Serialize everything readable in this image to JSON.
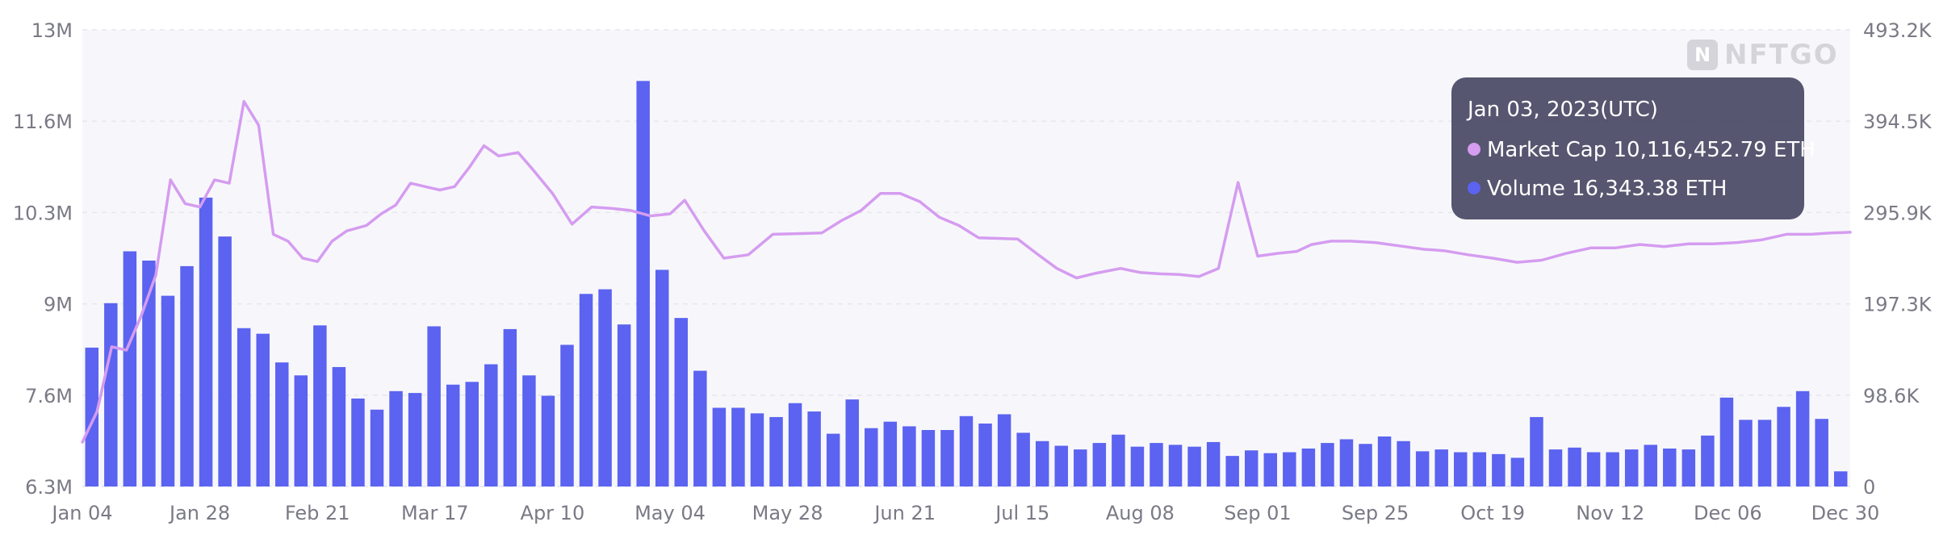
{
  "watermark": {
    "text": "NFTGO",
    "icon": "nftgo-logo-icon"
  },
  "tooltip": {
    "date": "Jan 03, 2023(UTC)",
    "rows": [
      {
        "label": "Market Cap 10,116,452.79 ETH",
        "color": "#d59cf0"
      },
      {
        "label": "Volume 16,343.38 ETH",
        "color": "#5b63f0"
      }
    ]
  },
  "chart_data": {
    "type": "bar",
    "title": "",
    "grid": true,
    "legend": "none",
    "left_axis": {
      "series": "Market Cap",
      "range": [
        6300000,
        13000000
      ],
      "ticks": [
        "6.3M",
        "7.6M",
        "9M",
        "10.3M",
        "11.6M",
        "13M"
      ],
      "tick_values": [
        6300000,
        7640000,
        8980000,
        10320000,
        11660000,
        13000000
      ]
    },
    "right_axis": {
      "series": "Volume",
      "range": [
        0,
        493200
      ],
      "ticks": [
        "0",
        "98.6K",
        "197.3K",
        "295.9K",
        "394.5K",
        "493.2K"
      ],
      "tick_values": [
        0,
        98640,
        197280,
        295920,
        394560,
        493200
      ]
    },
    "x_range": [
      "2022-01-04",
      "2022-12-31"
    ],
    "x_ticks": [
      "Jan 04",
      "Jan 28",
      "Feb 21",
      "Mar 17",
      "Apr 10",
      "May 04",
      "May 28",
      "Jun 21",
      "Jul 15",
      "Aug 08",
      "Sep 01",
      "Sep 25",
      "Oct 19",
      "Nov 12",
      "Dec 06",
      "Dec 30"
    ],
    "x_tick_dates": [
      "2022-01-04",
      "2022-01-28",
      "2022-02-21",
      "2022-03-17",
      "2022-04-10",
      "2022-05-04",
      "2022-05-28",
      "2022-06-21",
      "2022-07-15",
      "2022-08-08",
      "2022-09-01",
      "2022-09-25",
      "2022-10-19",
      "2022-11-12",
      "2022-12-06",
      "2022-12-30"
    ],
    "series": [
      {
        "name": "Market Cap",
        "kind": "line",
        "axis": "left",
        "color": "#d59cf0",
        "x": [
          "2022-01-04",
          "2022-01-07",
          "2022-01-10",
          "2022-01-13",
          "2022-01-16",
          "2022-01-19",
          "2022-01-22",
          "2022-01-25",
          "2022-01-28",
          "2022-01-31",
          "2022-02-03",
          "2022-02-06",
          "2022-02-09",
          "2022-02-12",
          "2022-02-15",
          "2022-02-18",
          "2022-02-21",
          "2022-02-24",
          "2022-02-27",
          "2022-03-03",
          "2022-03-06",
          "2022-03-09",
          "2022-03-12",
          "2022-03-15",
          "2022-03-18",
          "2022-03-21",
          "2022-03-24",
          "2022-03-27",
          "2022-03-30",
          "2022-04-03",
          "2022-04-06",
          "2022-04-10",
          "2022-04-14",
          "2022-04-18",
          "2022-04-22",
          "2022-04-26",
          "2022-04-30",
          "2022-05-04",
          "2022-05-07",
          "2022-05-11",
          "2022-05-15",
          "2022-05-20",
          "2022-05-25",
          "2022-05-30",
          "2022-06-04",
          "2022-06-08",
          "2022-06-12",
          "2022-06-16",
          "2022-06-20",
          "2022-06-24",
          "2022-06-28",
          "2022-07-02",
          "2022-07-06",
          "2022-07-10",
          "2022-07-14",
          "2022-07-18",
          "2022-07-22",
          "2022-07-26",
          "2022-07-30",
          "2022-08-04",
          "2022-08-08",
          "2022-08-12",
          "2022-08-16",
          "2022-08-20",
          "2022-08-24",
          "2022-08-28",
          "2022-09-01",
          "2022-09-05",
          "2022-09-09",
          "2022-09-12",
          "2022-09-16",
          "2022-09-20",
          "2022-09-25",
          "2022-09-30",
          "2022-10-05",
          "2022-10-09",
          "2022-10-14",
          "2022-10-19",
          "2022-10-24",
          "2022-10-29",
          "2022-11-03",
          "2022-11-08",
          "2022-11-13",
          "2022-11-18",
          "2022-11-23",
          "2022-11-28",
          "2022-12-03",
          "2022-12-08",
          "2022-12-13",
          "2022-12-18",
          "2022-12-23",
          "2022-12-27",
          "2022-12-31"
        ],
        "values": [
          6950000,
          7400000,
          8350000,
          8300000,
          8800000,
          9400000,
          10800000,
          10450000,
          10400000,
          10800000,
          10750000,
          11950000,
          11600000,
          10000000,
          9900000,
          9650000,
          9600000,
          9900000,
          10050000,
          10130000,
          10300000,
          10430000,
          10750000,
          10700000,
          10650000,
          10700000,
          10980000,
          11300000,
          11150000,
          11200000,
          10950000,
          10600000,
          10150000,
          10400000,
          10380000,
          10350000,
          10270000,
          10300000,
          10500000,
          10050000,
          9650000,
          9700000,
          10000000,
          10010000,
          10020000,
          10200000,
          10350000,
          10600000,
          10600000,
          10480000,
          10250000,
          10130000,
          9950000,
          9940000,
          9930000,
          9710000,
          9500000,
          9360000,
          9430000,
          9500000,
          9440000,
          9420000,
          9410000,
          9380000,
          9500000,
          10760000,
          9680000,
          9720000,
          9750000,
          9850000,
          9900000,
          9900000,
          9880000,
          9830000,
          9780000,
          9760000,
          9700000,
          9650000,
          9590000,
          9620000,
          9720000,
          9800000,
          9800000,
          9850000,
          9820000,
          9860000,
          9860000,
          9880000,
          9920000,
          10000000,
          10000000,
          10020000,
          10030000
        ]
      },
      {
        "name": "Volume",
        "kind": "bar",
        "axis": "right",
        "color": "#5b63f0",
        "values": [
          150000,
          198000,
          254000,
          244000,
          206000,
          238000,
          312000,
          270000,
          171000,
          165000,
          134000,
          120000,
          174000,
          129000,
          95000,
          83000,
          103000,
          101000,
          173000,
          110000,
          113000,
          132000,
          170000,
          120000,
          98000,
          153000,
          208000,
          213000,
          175000,
          438000,
          234000,
          182000,
          125000,
          85000,
          85000,
          79000,
          75000,
          90000,
          81000,
          57000,
          94000,
          63000,
          70000,
          65000,
          61000,
          61000,
          76000,
          68000,
          78000,
          58000,
          49000,
          44000,
          40000,
          47000,
          56000,
          43000,
          47000,
          45000,
          43000,
          48000,
          33000,
          39000,
          36000,
          37000,
          41000,
          47000,
          51000,
          46000,
          54000,
          49000,
          38000,
          40000,
          37000,
          37000,
          35000,
          31000,
          75000,
          40000,
          42000,
          37000,
          37000,
          40000,
          45000,
          41000,
          40000,
          55000,
          96000,
          72000,
          72000,
          86000,
          103000,
          73000,
          16343
        ]
      }
    ]
  }
}
